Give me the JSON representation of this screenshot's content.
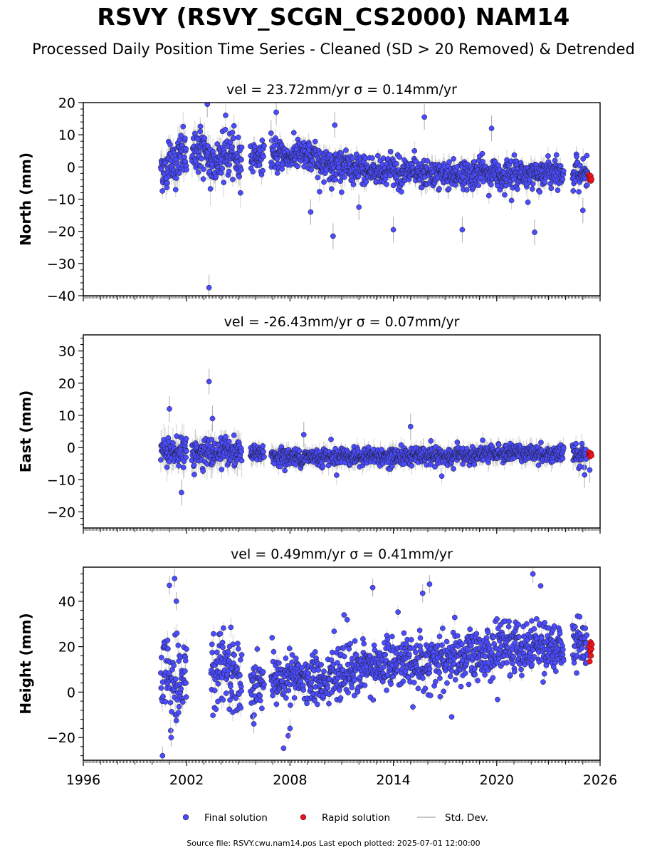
{
  "title": "RSVY (RSVY_SCGN_CS2000) NAM14",
  "subtitle": "Processed Daily Position Time Series - Cleaned (SD > 20 Removed) & Detrended",
  "footer": "Source file: RSVY.cwu.nam14.pos  Last epoch plotted: 2025-07-01 12:00:00",
  "colors": {
    "final": "#4b4bff",
    "rapid": "#e8141e",
    "std_dev": "#b4b4b4",
    "edge": "#1a1a1a"
  },
  "legend": {
    "final": "Final solution",
    "rapid": "Rapid solution",
    "std_dev": "Std. Dev."
  },
  "chart_data": [
    {
      "type": "scatter",
      "component": "north",
      "title": "vel = 23.72mm/yr   σ = 0.14mm/yr",
      "ylabel": "North (mm)",
      "xlabel": "",
      "xlim": [
        1996,
        2026
      ],
      "ylim": [
        -40,
        20
      ],
      "yticks": [
        -40,
        -30,
        -20,
        -10,
        0,
        10,
        20
      ],
      "yticklabels": [
        "−40",
        "−30",
        "−20",
        "−10",
        "0",
        "10",
        "20"
      ],
      "xticks": [
        1996,
        2002,
        2008,
        2014,
        2020,
        2026
      ],
      "xticklabels": [],
      "grid": false,
      "series": [
        {
          "name": "Final solution",
          "data_gaps": [
            [
              2002.0,
              2002.3
            ],
            [
              2005.2,
              2005.7
            ],
            [
              2006.5,
              2006.9
            ],
            [
              2023.9,
              2024.4
            ]
          ],
          "points": [
            [
              2000.5,
              1.0
            ],
            [
              2000.8,
              -3.0
            ],
            [
              2001.0,
              2.0
            ],
            [
              2001.3,
              -1.0
            ],
            [
              2001.6,
              4.0
            ],
            [
              2002.4,
              3.0
            ],
            [
              2002.8,
              6.0
            ],
            [
              2003.2,
              2.0
            ],
            [
              2003.6,
              1.0
            ],
            [
              2004.0,
              3.0
            ],
            [
              2004.5,
              4.0
            ],
            [
              2005.0,
              2.0
            ],
            [
              2005.9,
              3.0
            ],
            [
              2007.0,
              4.0
            ],
            [
              2007.5,
              3.5
            ],
            [
              2008.0,
              3.0
            ],
            [
              2008.5,
              4.0
            ],
            [
              2009.0,
              3.0
            ],
            [
              2009.5,
              2.5
            ],
            [
              2010.0,
              1.5
            ],
            [
              2010.5,
              0.5
            ],
            [
              2011.0,
              1.0
            ],
            [
              2011.5,
              -0.5
            ],
            [
              2012.0,
              -0.5
            ],
            [
              2012.5,
              -1.0
            ],
            [
              2013.0,
              -1.0
            ],
            [
              2013.5,
              -2.0
            ],
            [
              2014.0,
              -1.0
            ],
            [
              2014.5,
              -2.0
            ],
            [
              2015.0,
              -1.5
            ],
            [
              2015.5,
              -2.5
            ],
            [
              2016.0,
              -2.0
            ],
            [
              2016.5,
              -2.5
            ],
            [
              2017.0,
              -2.0
            ],
            [
              2017.5,
              -2.5
            ],
            [
              2018.0,
              -2.0
            ],
            [
              2018.5,
              -2.5
            ],
            [
              2019.0,
              -1.5
            ],
            [
              2019.5,
              -2.0
            ],
            [
              2020.0,
              -2.0
            ],
            [
              2020.5,
              -2.5
            ],
            [
              2021.0,
              -2.0
            ],
            [
              2021.5,
              -2.5
            ],
            [
              2022.0,
              -2.0
            ],
            [
              2022.5,
              -2.5
            ],
            [
              2023.0,
              -1.5
            ],
            [
              2023.5,
              -2.0
            ],
            [
              2024.6,
              -2.0
            ],
            [
              2025.0,
              -2.5
            ],
            [
              2025.3,
              -3.0
            ]
          ],
          "outliers": [
            [
              2003.2,
              19.5
            ],
            [
              2003.3,
              -37.5
            ],
            [
              2006.9,
              10.5
            ],
            [
              2007.2,
              17.0
            ],
            [
              2010.5,
              -21.5
            ],
            [
              2010.6,
              13.0
            ],
            [
              2015.8,
              15.5
            ],
            [
              2019.7,
              12.0
            ],
            [
              2022.2,
              -20.3
            ],
            [
              2025.0,
              -13.5
            ],
            [
              2009.2,
              -14.0
            ],
            [
              2014.0,
              -19.5
            ],
            [
              2018.0,
              -19.5
            ],
            [
              2012.0,
              -12.5
            ]
          ]
        },
        {
          "name": "Rapid solution",
          "points": [
            [
              2025.35,
              -2.5
            ],
            [
              2025.38,
              -3.2
            ],
            [
              2025.4,
              -4.0
            ],
            [
              2025.42,
              -3.5
            ],
            [
              2025.45,
              -2.8
            ],
            [
              2025.47,
              -4.3
            ],
            [
              2025.5,
              -3.8
            ]
          ]
        }
      ]
    },
    {
      "type": "scatter",
      "component": "east",
      "title": "vel = -26.43mm/yr   σ = 0.07mm/yr",
      "ylabel": "East (mm)",
      "xlabel": "",
      "xlim": [
        1996,
        2026
      ],
      "ylim": [
        -25,
        35
      ],
      "yticks": [
        -20,
        -10,
        0,
        10,
        20,
        30
      ],
      "yticklabels": [
        "−20",
        "−10",
        "0",
        "10",
        "20",
        "30"
      ],
      "xticks": [
        1996,
        2002,
        2008,
        2014,
        2020,
        2026
      ],
      "xticklabels": [],
      "grid": false,
      "series": [
        {
          "name": "Final solution",
          "data_gaps": [
            [
              2002.0,
              2002.3
            ],
            [
              2005.2,
              2005.7
            ],
            [
              2006.5,
              2006.9
            ],
            [
              2023.9,
              2024.4
            ]
          ],
          "points": [
            [
              2000.5,
              -1.0
            ],
            [
              2001.0,
              -2.0
            ],
            [
              2001.5,
              -1.0
            ],
            [
              2002.5,
              -1.5
            ],
            [
              2003.0,
              -1.0
            ],
            [
              2003.5,
              -2.0
            ],
            [
              2004.0,
              -1.5
            ],
            [
              2004.5,
              -2.0
            ],
            [
              2005.0,
              -2.0
            ],
            [
              2005.9,
              -2.0
            ],
            [
              2007.0,
              -2.5
            ],
            [
              2008.0,
              -3.0
            ],
            [
              2009.0,
              -3.0
            ],
            [
              2010.0,
              -3.0
            ],
            [
              2011.0,
              -2.5
            ],
            [
              2012.0,
              -3.0
            ],
            [
              2013.0,
              -2.5
            ],
            [
              2014.0,
              -3.0
            ],
            [
              2015.0,
              -2.5
            ],
            [
              2016.0,
              -2.5
            ],
            [
              2017.0,
              -3.0
            ],
            [
              2018.0,
              -2.5
            ],
            [
              2019.0,
              -2.5
            ],
            [
              2020.0,
              -2.0
            ],
            [
              2021.0,
              -1.5
            ],
            [
              2022.0,
              -1.5
            ],
            [
              2023.0,
              -2.0
            ],
            [
              2024.6,
              -2.0
            ],
            [
              2025.2,
              -2.0
            ]
          ],
          "outliers": [
            [
              2001.0,
              12.0
            ],
            [
              2003.3,
              20.5
            ],
            [
              2003.5,
              9.0
            ],
            [
              2001.7,
              -14.0
            ],
            [
              2015.0,
              6.5
            ],
            [
              2008.8,
              4.0
            ],
            [
              2025.1,
              -8.5
            ],
            [
              2025.4,
              -7.0
            ]
          ]
        },
        {
          "name": "Rapid solution",
          "points": [
            [
              2025.35,
              -1.5
            ],
            [
              2025.38,
              -2.3
            ],
            [
              2025.4,
              -2.8
            ],
            [
              2025.43,
              -2.0
            ],
            [
              2025.46,
              -1.8
            ],
            [
              2025.5,
              -2.5
            ]
          ]
        }
      ]
    },
    {
      "type": "scatter",
      "component": "height",
      "title": "vel = 0.49mm/yr   σ = 0.41mm/yr",
      "ylabel": "Height (mm)",
      "xlabel": "",
      "xlim": [
        1996,
        2026
      ],
      "ylim": [
        -30,
        55
      ],
      "yticks": [
        -20,
        0,
        20,
        40
      ],
      "yticklabels": [
        "−20",
        "0",
        "20",
        "40"
      ],
      "xticks": [
        1996,
        2002,
        2008,
        2014,
        2020,
        2026
      ],
      "xticklabels": [
        "1996",
        "2002",
        "2008",
        "2014",
        "2020",
        "2026"
      ],
      "grid": false,
      "series": [
        {
          "name": "Final solution",
          "data_gaps": [
            [
              2002.0,
              2003.4
            ],
            [
              2005.2,
              2005.7
            ],
            [
              2006.5,
              2006.9
            ],
            [
              2023.9,
              2024.4
            ]
          ],
          "points": [
            [
              2000.5,
              5.0
            ],
            [
              2000.9,
              10.0
            ],
            [
              2001.2,
              0.0
            ],
            [
              2001.6,
              8.0
            ],
            [
              2003.5,
              7.0
            ],
            [
              2004.0,
              9.0
            ],
            [
              2004.5,
              8.0
            ],
            [
              2005.0,
              6.0
            ],
            [
              2005.9,
              4.0
            ],
            [
              2007.0,
              4.0
            ],
            [
              2007.5,
              5.0
            ],
            [
              2008.0,
              5.0
            ],
            [
              2008.5,
              6.0
            ],
            [
              2009.0,
              5.0
            ],
            [
              2009.5,
              6.0
            ],
            [
              2010.0,
              7.0
            ],
            [
              2010.5,
              8.0
            ],
            [
              2011.0,
              9.0
            ],
            [
              2011.5,
              10.0
            ],
            [
              2012.0,
              10.0
            ],
            [
              2012.5,
              11.0
            ],
            [
              2013.0,
              11.0
            ],
            [
              2013.5,
              12.0
            ],
            [
              2014.0,
              12.0
            ],
            [
              2014.5,
              13.0
            ],
            [
              2015.0,
              13.0
            ],
            [
              2015.5,
              14.0
            ],
            [
              2016.0,
              14.0
            ],
            [
              2016.5,
              13.0
            ],
            [
              2017.0,
              14.0
            ],
            [
              2017.5,
              14.0
            ],
            [
              2018.0,
              15.0
            ],
            [
              2018.5,
              15.0
            ],
            [
              2019.0,
              16.0
            ],
            [
              2019.5,
              17.0
            ],
            [
              2020.0,
              18.0
            ],
            [
              2020.5,
              19.0
            ],
            [
              2021.0,
              20.0
            ],
            [
              2021.5,
              20.0
            ],
            [
              2022.0,
              21.0
            ],
            [
              2022.5,
              22.0
            ],
            [
              2023.0,
              20.0
            ],
            [
              2023.5,
              19.0
            ],
            [
              2024.6,
              22.0
            ],
            [
              2025.0,
              24.0
            ],
            [
              2025.3,
              20.0
            ]
          ],
          "outliers": [
            [
              2001.0,
              47.0
            ],
            [
              2001.3,
              50.0
            ],
            [
              2000.6,
              -28.0
            ],
            [
              2001.1,
              -20.0
            ],
            [
              2022.1,
              52.0
            ],
            [
              2016.1,
              47.5
            ],
            [
              2012.8,
              46.0
            ],
            [
              2015.7,
              43.5
            ],
            [
              2005.9,
              -14.0
            ],
            [
              2008.0,
              -16.0
            ],
            [
              2001.4,
              40.0
            ]
          ]
        },
        {
          "name": "Rapid solution",
          "points": [
            [
              2025.38,
              20.0
            ],
            [
              2025.4,
              13.5
            ],
            [
              2025.42,
              18.0
            ],
            [
              2025.45,
              22.0
            ],
            [
              2025.47,
              16.0
            ],
            [
              2025.5,
              19.0
            ],
            [
              2025.52,
              21.0
            ]
          ]
        }
      ]
    }
  ]
}
